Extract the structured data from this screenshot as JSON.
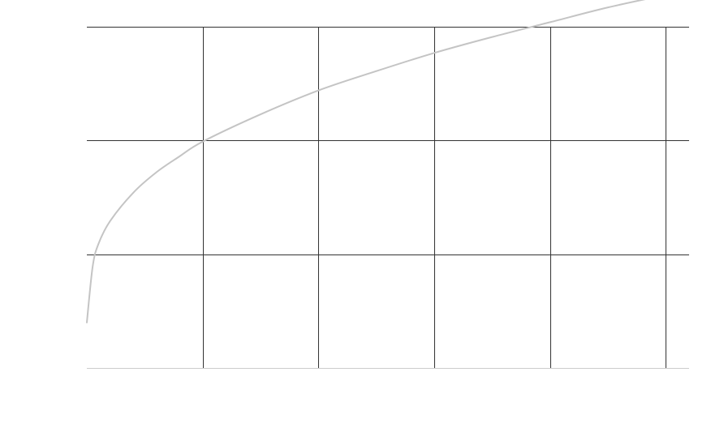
{
  "chart_data": {
    "type": "line",
    "title": "",
    "xlabel": "",
    "ylabel": "",
    "xlim": [
      0,
      5.2
    ],
    "ylim": [
      0,
      3
    ],
    "grid": true,
    "x_ticks": [
      0,
      1,
      2,
      3,
      4,
      5
    ],
    "y_ticks": [
      0,
      1,
      2,
      3
    ],
    "colors": {
      "grid": "#333333",
      "series": "#c4c4c4",
      "baseline": "#cccccc"
    },
    "series": [
      {
        "x": [
          0,
          0.05,
          0.1,
          0.2,
          0.4,
          0.6,
          0.8,
          1.0,
          1.5,
          2.0,
          2.5,
          3.0,
          3.5,
          4.0,
          4.5,
          5.0,
          5.2
        ],
        "values": [
          0.4,
          0.89,
          1.09,
          1.29,
          1.54,
          1.72,
          1.86,
          1.99,
          2.23,
          2.44,
          2.61,
          2.77,
          2.91,
          3.04,
          3.17,
          3.28,
          3.32
        ]
      }
    ]
  }
}
